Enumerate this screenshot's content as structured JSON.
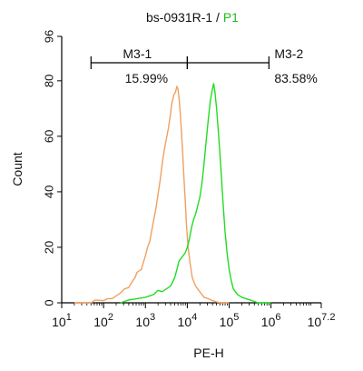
{
  "chart_data": {
    "type": "line",
    "title": "bs-0931R-1 / ",
    "title_highlight": "P1",
    "xlabel": "PE-H",
    "ylabel": "Count",
    "xscale": "log",
    "xlim": [
      10,
      15848931
    ],
    "ylim": [
      0,
      96
    ],
    "yticks": [
      {
        "v": 0,
        "label": "0"
      },
      {
        "v": 20,
        "label": "20"
      },
      {
        "v": 40,
        "label": "40"
      },
      {
        "v": 60,
        "label": "60"
      },
      {
        "v": 80,
        "label": "80"
      },
      {
        "v": 96,
        "label": "96"
      }
    ],
    "xticks": [
      {
        "e": 1,
        "base": "10",
        "exp": "1"
      },
      {
        "e": 2,
        "base": "10",
        "exp": "2"
      },
      {
        "e": 3,
        "base": "10",
        "exp": "3"
      },
      {
        "e": 4,
        "base": "10",
        "exp": "4"
      },
      {
        "e": 5,
        "base": "10",
        "exp": "5"
      },
      {
        "e": 6,
        "base": "10",
        "exp": "6"
      },
      {
        "e": 7.2,
        "base": "10",
        "exp": "7.2"
      }
    ],
    "colors": {
      "title_highlight": "#22bb22",
      "axis": "#000000"
    },
    "series": [
      {
        "color": "#f0a060",
        "points": [
          [
            1.3,
            0
          ],
          [
            1.7,
            0
          ],
          [
            1.8,
            1
          ],
          [
            2.0,
            0.8
          ],
          [
            2.1,
            1.5
          ],
          [
            2.2,
            1.5
          ],
          [
            2.3,
            2.5
          ],
          [
            2.4,
            3.5
          ],
          [
            2.5,
            5
          ],
          [
            2.6,
            5.5
          ],
          [
            2.7,
            8
          ],
          [
            2.75,
            9
          ],
          [
            2.8,
            11
          ],
          [
            2.9,
            12
          ],
          [
            3.0,
            17
          ],
          [
            3.05,
            20
          ],
          [
            3.1,
            22
          ],
          [
            3.15,
            26
          ],
          [
            3.2,
            30
          ],
          [
            3.25,
            34
          ],
          [
            3.3,
            39
          ],
          [
            3.35,
            44
          ],
          [
            3.4,
            50
          ],
          [
            3.45,
            55
          ],
          [
            3.5,
            59
          ],
          [
            3.55,
            63
          ],
          [
            3.6,
            68
          ],
          [
            3.62,
            71
          ],
          [
            3.65,
            73
          ],
          [
            3.68,
            75
          ],
          [
            3.72,
            76
          ],
          [
            3.75,
            78
          ],
          [
            3.78,
            77
          ],
          [
            3.8,
            74
          ],
          [
            3.83,
            69
          ],
          [
            3.86,
            62
          ],
          [
            3.89,
            54
          ],
          [
            3.92,
            45
          ],
          [
            3.95,
            37
          ],
          [
            3.98,
            28
          ],
          [
            4.02,
            20
          ],
          [
            4.07,
            14
          ],
          [
            4.12,
            9
          ],
          [
            4.2,
            6
          ],
          [
            4.3,
            4
          ],
          [
            4.4,
            2
          ],
          [
            4.5,
            1.5
          ],
          [
            4.6,
            0.8
          ],
          [
            4.7,
            0.3
          ],
          [
            4.8,
            0
          ],
          [
            5.0,
            0
          ]
        ]
      },
      {
        "color": "#22dd22",
        "points": [
          [
            2.4,
            0
          ],
          [
            2.6,
            1
          ],
          [
            2.8,
            1.5
          ],
          [
            3.0,
            2
          ],
          [
            3.2,
            3
          ],
          [
            3.3,
            4.5
          ],
          [
            3.4,
            4
          ],
          [
            3.5,
            5
          ],
          [
            3.6,
            6
          ],
          [
            3.7,
            9
          ],
          [
            3.75,
            12
          ],
          [
            3.8,
            15
          ],
          [
            3.85,
            16
          ],
          [
            3.9,
            17
          ],
          [
            3.95,
            18
          ],
          [
            4.0,
            20
          ],
          [
            4.05,
            23
          ],
          [
            4.1,
            27
          ],
          [
            4.15,
            30
          ],
          [
            4.2,
            32
          ],
          [
            4.25,
            35
          ],
          [
            4.3,
            38
          ],
          [
            4.35,
            43
          ],
          [
            4.4,
            50
          ],
          [
            4.45,
            58
          ],
          [
            4.5,
            66
          ],
          [
            4.55,
            73
          ],
          [
            4.6,
            77
          ],
          [
            4.63,
            79
          ],
          [
            4.66,
            76
          ],
          [
            4.7,
            70
          ],
          [
            4.75,
            60
          ],
          [
            4.8,
            49
          ],
          [
            4.85,
            37
          ],
          [
            4.9,
            26
          ],
          [
            4.95,
            18
          ],
          [
            5.0,
            12
          ],
          [
            5.05,
            8
          ],
          [
            5.1,
            5
          ],
          [
            5.2,
            3
          ],
          [
            5.3,
            2
          ],
          [
            5.4,
            1.5
          ],
          [
            5.5,
            1
          ],
          [
            5.6,
            0.5
          ],
          [
            5.7,
            0
          ],
          [
            6.0,
            0
          ]
        ]
      }
    ],
    "gates": [
      {
        "name": "M3-1",
        "pct": "15.99%",
        "from": 1.7,
        "to": 4.0
      },
      {
        "name": "M3-2",
        "pct": "83.58%",
        "from": 4.0,
        "to": 5.95
      }
    ]
  }
}
